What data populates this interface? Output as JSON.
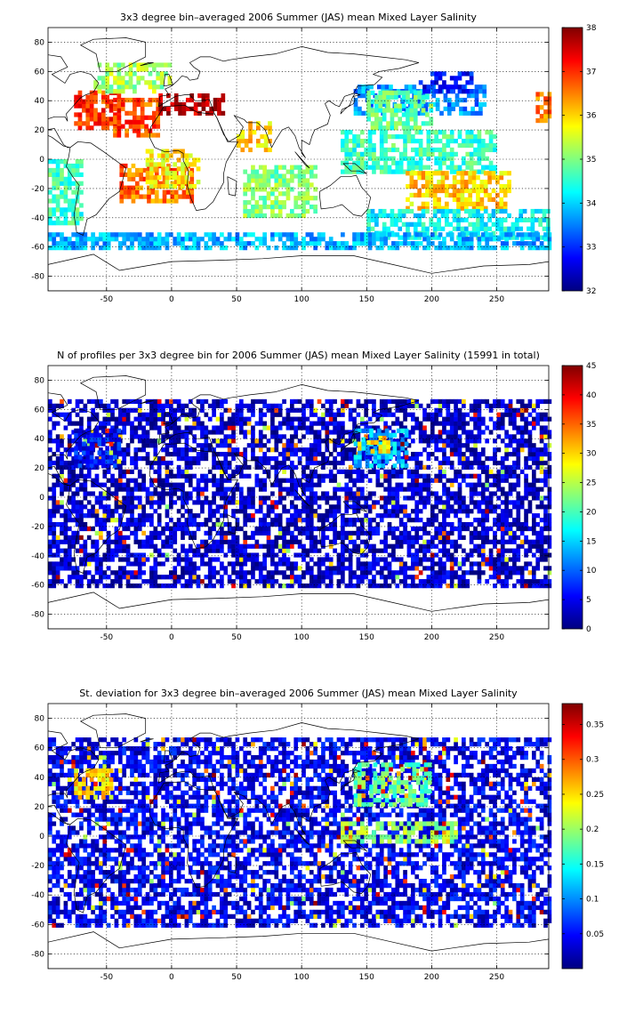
{
  "chart_data": [
    {
      "type": "heatmap",
      "title": "3x3 degree bin–averaged 2006 Summer (JAS) mean Mixed Layer Salinity",
      "xlim": [
        -95,
        290
      ],
      "ylim": [
        -90,
        90
      ],
      "xticks": [
        -50,
        0,
        50,
        100,
        150,
        200,
        250
      ],
      "yticks": [
        -80,
        -60,
        -40,
        -20,
        0,
        20,
        40,
        60,
        80
      ],
      "colorbar": {
        "range": [
          32,
          38
        ],
        "ticks": [
          32,
          33,
          34,
          35,
          36,
          37,
          38
        ],
        "colormap": "jet"
      },
      "grid": true,
      "bin_size_deg": 3,
      "regions": [
        {
          "lon": [
            -75,
            -40
          ],
          "lat": [
            20,
            45
          ],
          "value": 37.0
        },
        {
          "lon": [
            -45,
            -10
          ],
          "lat": [
            15,
            40
          ],
          "value": 36.8
        },
        {
          "lon": [
            -10,
            40
          ],
          "lat": [
            30,
            45
          ],
          "value": 37.6
        },
        {
          "lon": [
            -60,
            0
          ],
          "lat": [
            45,
            65
          ],
          "value": 35.2
        },
        {
          "lon": [
            -40,
            15
          ],
          "lat": [
            -30,
            -5
          ],
          "value": 36.6
        },
        {
          "lon": [
            -95,
            -70
          ],
          "lat": [
            -45,
            0
          ],
          "value": 34.6
        },
        {
          "lon": [
            -20,
            20
          ],
          "lat": [
            -20,
            5
          ],
          "value": 35.8
        },
        {
          "lon": [
            50,
            75
          ],
          "lat": [
            5,
            25
          ],
          "value": 36.0
        },
        {
          "lon": [
            55,
            110
          ],
          "lat": [
            -40,
            -5
          ],
          "value": 35.0
        },
        {
          "lon": [
            140,
            240
          ],
          "lat": [
            30,
            50
          ],
          "value": 33.6
        },
        {
          "lon": [
            150,
            200
          ],
          "lat": [
            20,
            45
          ],
          "value": 34.8
        },
        {
          "lon": [
            130,
            250
          ],
          "lat": [
            -10,
            20
          ],
          "value": 34.6
        },
        {
          "lon": [
            180,
            260
          ],
          "lat": [
            -35,
            -10
          ],
          "value": 36.0
        },
        {
          "lon": [
            150,
            290
          ],
          "lat": [
            -55,
            -35
          ],
          "value": 34.3
        },
        {
          "lon": [
            -95,
            290
          ],
          "lat": [
            -62,
            -50
          ],
          "value": 33.8
        },
        {
          "lon": [
            190,
            230
          ],
          "lat": [
            45,
            60
          ],
          "value": 32.8
        },
        {
          "lon": [
            280,
            290
          ],
          "lat": [
            25,
            45
          ],
          "value": 36.5
        }
      ]
    },
    {
      "type": "heatmap",
      "title": "N of profiles per 3x3 degree bin for 2006 Summer (JAS) mean Mixed Layer Salinity  (15991 in total)",
      "xlim": [
        -95,
        290
      ],
      "ylim": [
        -90,
        90
      ],
      "xticks": [
        -50,
        0,
        50,
        100,
        150,
        200,
        250
      ],
      "yticks": [
        -80,
        -60,
        -40,
        -20,
        0,
        20,
        40,
        60,
        80
      ],
      "colorbar": {
        "range": [
          0,
          45
        ],
        "ticks": [
          0,
          5,
          10,
          15,
          20,
          25,
          30,
          35,
          40,
          45
        ],
        "colormap": "jet"
      },
      "grid": true,
      "bin_size_deg": 3,
      "total_profiles": 15991,
      "regions": [
        {
          "lon": [
            -95,
            290
          ],
          "lat": [
            -62,
            65
          ],
          "value": 3
        },
        {
          "lon": [
            140,
            180
          ],
          "lat": [
            20,
            45
          ],
          "value": 14
        },
        {
          "lon": [
            150,
            170
          ],
          "lat": [
            30,
            40
          ],
          "value": 30
        },
        {
          "lon": [
            -75,
            -40
          ],
          "lat": [
            20,
            45
          ],
          "value": 6
        }
      ]
    },
    {
      "type": "heatmap",
      "title": "St. deviation for 3x3 degree bin–averaged 2006 Summer (JAS) mean Mixed Layer Salinity",
      "xlim": [
        -95,
        290
      ],
      "ylim": [
        -90,
        90
      ],
      "xticks": [
        -50,
        0,
        50,
        100,
        150,
        200,
        250
      ],
      "yticks": [
        -80,
        -60,
        -40,
        -20,
        0,
        20,
        40,
        60,
        80
      ],
      "colorbar": {
        "range": [
          0,
          0.38
        ],
        "ticks": [
          0.05,
          0.1,
          0.15,
          0.2,
          0.25,
          0.3,
          0.35
        ],
        "colormap": "jet"
      },
      "grid": true,
      "bin_size_deg": 3,
      "regions": [
        {
          "lon": [
            -95,
            290
          ],
          "lat": [
            -62,
            65
          ],
          "value": 0.04
        },
        {
          "lon": [
            140,
            200
          ],
          "lat": [
            20,
            50
          ],
          "value": 0.18
        },
        {
          "lon": [
            130,
            220
          ],
          "lat": [
            -5,
            10
          ],
          "value": 0.2
        },
        {
          "lon": [
            -75,
            -45
          ],
          "lat": [
            25,
            45
          ],
          "value": 0.25
        }
      ]
    }
  ]
}
